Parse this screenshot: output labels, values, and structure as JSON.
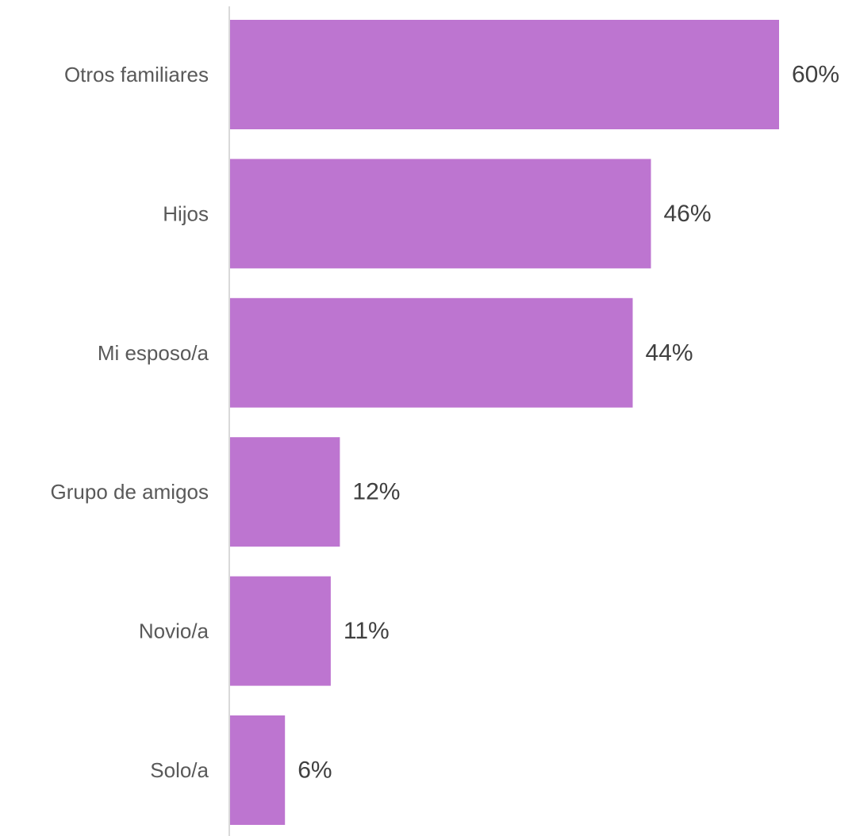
{
  "chart_data": {
    "type": "bar",
    "orientation": "horizontal",
    "categories": [
      "Otros familiares",
      "Hijos",
      "Mi esposo/a",
      "Grupo de amigos",
      "Novio/a",
      "Solo/a"
    ],
    "values": [
      60,
      46,
      44,
      12,
      11,
      6
    ],
    "data_labels": [
      "60%",
      "46%",
      "44%",
      "12%",
      "11%",
      "6%"
    ],
    "unit": "%",
    "title": "",
    "xlabel": "",
    "ylabel": "",
    "xlim": [
      0,
      60
    ],
    "grid": false,
    "legend": "none",
    "colors": {
      "bar": "#BD75D0",
      "axis": "#D9D9D9",
      "category_text": "#595959",
      "value_text": "#404040"
    }
  }
}
